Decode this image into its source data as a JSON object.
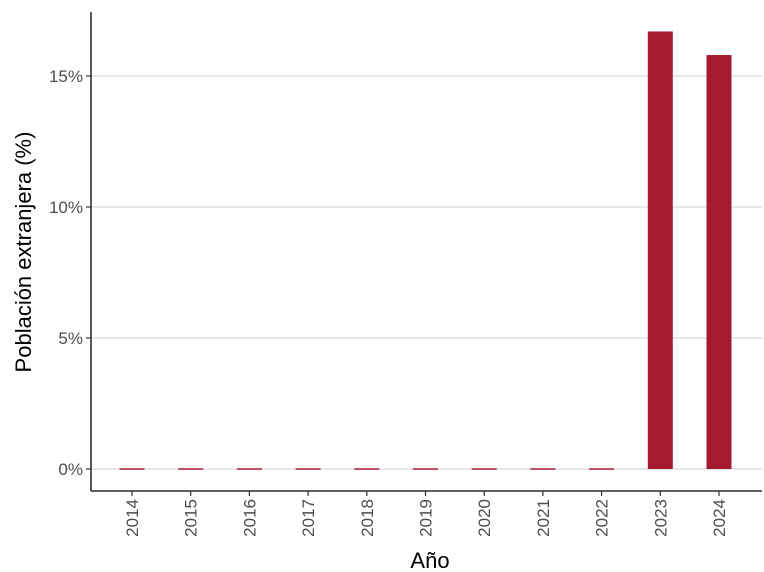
{
  "chart_data": {
    "type": "bar",
    "title": "",
    "xlabel": "Año",
    "ylabel": "Población extranjera (%)",
    "categories": [
      "2014",
      "2015",
      "2016",
      "2017",
      "2018",
      "2019",
      "2020",
      "2021",
      "2022",
      "2023",
      "2024"
    ],
    "values": [
      0,
      0,
      0,
      0,
      0,
      0,
      0,
      0,
      0,
      16.7,
      15.8
    ],
    "ylim": [
      0,
      17.5
    ],
    "yticks": [
      0,
      5,
      10,
      15
    ],
    "ytick_labels": [
      "0%",
      "5%",
      "10%",
      "15%"
    ],
    "bar_color": "#a51931",
    "grid": "horizontal major",
    "legend": "none"
  }
}
